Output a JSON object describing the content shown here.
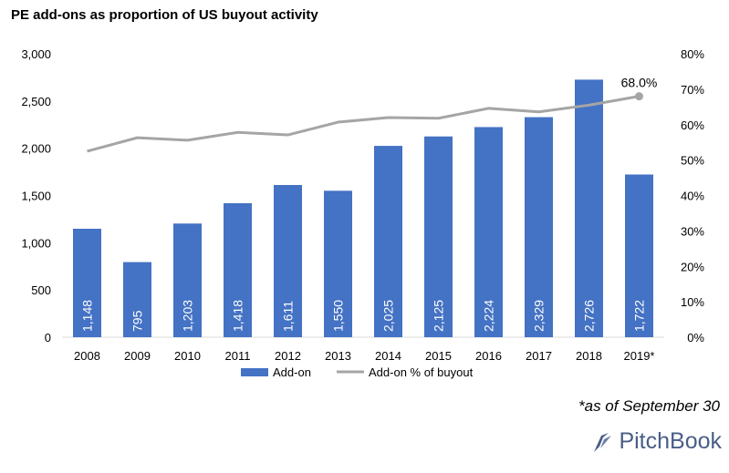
{
  "title": "PE add-ons as proportion of US buyout activity",
  "footnote": "*as of September 30",
  "brand": {
    "name": "PitchBook",
    "icon": "pitchbook-logo-icon",
    "color": "#4a5e86"
  },
  "colors": {
    "bar": "#4472c4",
    "line": "#a5a5a5",
    "bar_label": "#ffffff"
  },
  "chart_data": {
    "type": "bar",
    "categories": [
      "2008",
      "2009",
      "2010",
      "2011",
      "2012",
      "2013",
      "2014",
      "2015",
      "2016",
      "2017",
      "2018",
      "2019*"
    ],
    "series": [
      {
        "name": "Add-on",
        "type": "bar",
        "axis": "left",
        "values": [
          1148,
          795,
          1203,
          1418,
          1611,
          1550,
          2025,
          2125,
          2224,
          2329,
          2726,
          1722
        ],
        "labels": [
          "1,148",
          "795",
          "1,203",
          "1,418",
          "1,611",
          "1,550",
          "2,025",
          "2,125",
          "2,224",
          "2,329",
          "2,726",
          "1,722"
        ]
      },
      {
        "name": "Add-on % of buyout",
        "type": "line",
        "axis": "right",
        "values": [
          52.5,
          56.3,
          55.6,
          57.8,
          57.1,
          60.7,
          62.0,
          61.8,
          64.6,
          63.6,
          65.5,
          68.0
        ]
      }
    ],
    "ylim": [
      0,
      3000
    ],
    "yticks": [
      0,
      500,
      1000,
      1500,
      2000,
      2500,
      3000
    ],
    "ytick_labels": [
      "0",
      "500",
      "1,000",
      "1,500",
      "2,000",
      "2,500",
      "3,000"
    ],
    "y2lim": [
      0,
      80
    ],
    "y2ticks": [
      0,
      10,
      20,
      30,
      40,
      50,
      60,
      70,
      80
    ],
    "y2tick_labels": [
      "0%",
      "10%",
      "20%",
      "30%",
      "40%",
      "50%",
      "60%",
      "70%",
      "80%"
    ],
    "annotation": {
      "series": "Add-on % of buyout",
      "index": 11,
      "text": "68.0%"
    },
    "grid": false,
    "legend": "bottom",
    "legend_items": [
      "Add-on",
      "Add-on % of buyout"
    ]
  }
}
